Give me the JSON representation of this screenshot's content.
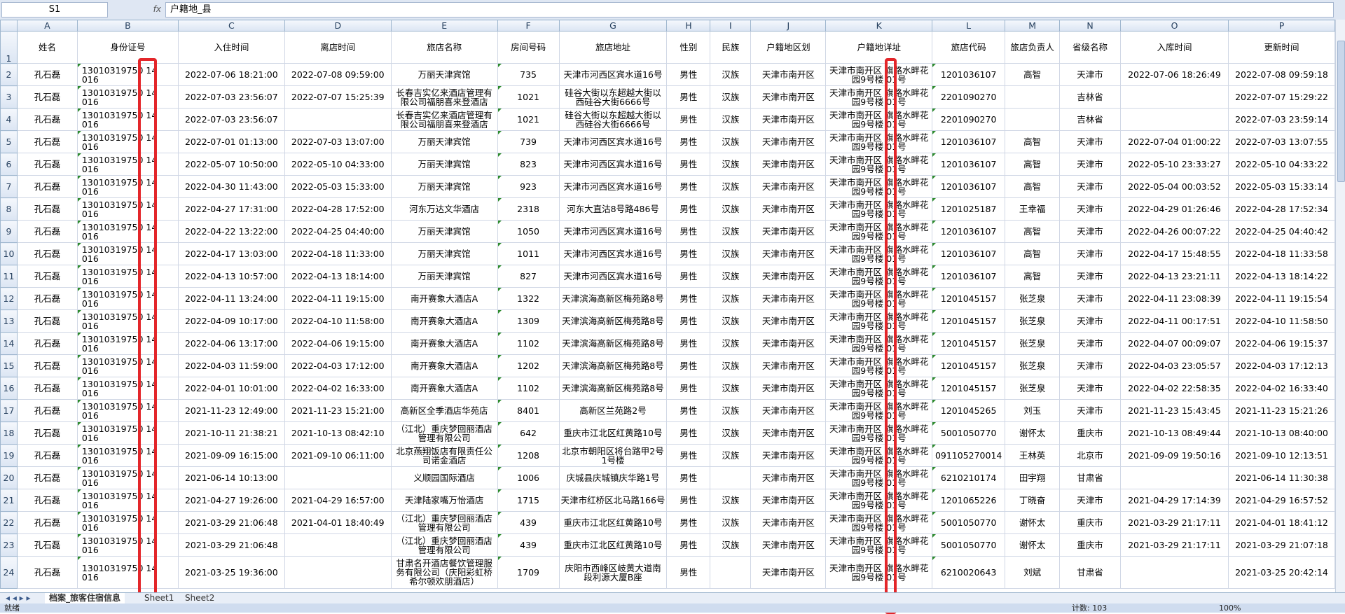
{
  "name_box": "S1",
  "formula": "户籍地_县",
  "columns": [
    "A",
    "B",
    "C",
    "D",
    "E",
    "F",
    "G",
    "H",
    "I",
    "J",
    "K",
    "L",
    "M",
    "N",
    "O",
    "P"
  ],
  "row_numbers": [
    1,
    2,
    3,
    4,
    5,
    6,
    7,
    8,
    9,
    10,
    11,
    12,
    13,
    14,
    15,
    16,
    17,
    18,
    19,
    20,
    21,
    22,
    23,
    24
  ],
  "table": {
    "header": [
      "姓名",
      "身份证号",
      "入住时间",
      "离店时间",
      "旅店名称",
      "房间号码",
      "旅店地址",
      "性别",
      "民族",
      "户籍地区划",
      "户籍地详址",
      "旅店代码",
      "旅店负责人",
      "省级名称",
      "入库时间",
      "更新时间"
    ],
    "rows": [
      [
        "孔石磊",
        "13010319750 14 016",
        "2022-07-06 18:21:00",
        "2022-07-08 09:59:00",
        "万丽天津宾馆",
        "735",
        "天津市河西区宾水道16号",
        "男性",
        "汉族",
        "天津市南开区",
        "天津市南开区 旗路水畔花园9号楼 01号",
        "1201036107",
        "高智",
        "天津市",
        "2022-07-06 18:26:49",
        "2022-07-08 09:59:18"
      ],
      [
        "孔石磊",
        "13010319750 14 016",
        "2022-07-03 23:56:07",
        "2022-07-07 15:25:39",
        "长春吉实亿来酒店管理有限公司福朋喜来登酒店",
        "1021",
        "硅谷大街以东超越大街以西硅谷大街6666号",
        "男性",
        "汉族",
        "天津市南开区",
        "天津市南开区 旗路水畔花园9号楼 01号",
        "2201090270",
        null,
        "吉林省",
        null,
        "2022-07-07 15:29:22"
      ],
      [
        "孔石磊",
        "13010319750 14 016",
        "2022-07-03 23:56:07",
        null,
        "长春吉实亿来酒店管理有限公司福朋喜来登酒店",
        "1021",
        "硅谷大街以东超越大街以西硅谷大街6666号",
        "男性",
        "汉族",
        "天津市南开区",
        "天津市南开区 旗路水畔花园9号楼 01号",
        "2201090270",
        null,
        "吉林省",
        null,
        "2022-07-03 23:59:14"
      ],
      [
        "孔石磊",
        "13010319750 14 016",
        "2022-07-01 01:13:00",
        "2022-07-03 13:07:00",
        "万丽天津宾馆",
        "739",
        "天津市河西区宾水道16号",
        "男性",
        "汉族",
        "天津市南开区",
        "天津市南开区 旗路水畔花园9号楼 01号",
        "1201036107",
        "高智",
        "天津市",
        "2022-07-04 01:00:22",
        "2022-07-03 13:07:55"
      ],
      [
        "孔石磊",
        "13010319750 14 016",
        "2022-05-07 10:50:00",
        "2022-05-10 04:33:00",
        "万丽天津宾馆",
        "823",
        "天津市河西区宾水道16号",
        "男性",
        "汉族",
        "天津市南开区",
        "天津市南开区 旗路水畔花园9号楼 01号",
        "1201036107",
        "高智",
        "天津市",
        "2022-05-10 23:33:27",
        "2022-05-10 04:33:22"
      ],
      [
        "孔石磊",
        "13010319750 14 016",
        "2022-04-30 11:43:00",
        "2022-05-03 15:33:00",
        "万丽天津宾馆",
        "923",
        "天津市河西区宾水道16号",
        "男性",
        "汉族",
        "天津市南开区",
        "天津市南开区 旗路水畔花园9号楼 01号",
        "1201036107",
        "高智",
        "天津市",
        "2022-05-04 00:03:52",
        "2022-05-03 15:33:14"
      ],
      [
        "孔石磊",
        "13010319750 14 016",
        "2022-04-27 17:31:00",
        "2022-04-28 17:52:00",
        "河东万达文华酒店",
        "2318",
        "河东大直沽8号路486号",
        "男性",
        "汉族",
        "天津市南开区",
        "天津市南开区 旗路水畔花园9号楼 01号",
        "1201025187",
        "王幸福",
        "天津市",
        "2022-04-29 01:26:46",
        "2022-04-28 17:52:34"
      ],
      [
        "孔石磊",
        "13010319750 14 016",
        "2022-04-22 13:22:00",
        "2022-04-25 04:40:00",
        "万丽天津宾馆",
        "1050",
        "天津市河西区宾水道16号",
        "男性",
        "汉族",
        "天津市南开区",
        "天津市南开区 旗路水畔花园9号楼 01号",
        "1201036107",
        "高智",
        "天津市",
        "2022-04-26 00:07:22",
        "2022-04-25 04:40:42"
      ],
      [
        "孔石磊",
        "13010319750 14 016",
        "2022-04-17 13:03:00",
        "2022-04-18 11:33:00",
        "万丽天津宾馆",
        "1011",
        "天津市河西区宾水道16号",
        "男性",
        "汉族",
        "天津市南开区",
        "天津市南开区 旗路水畔花园9号楼 01号",
        "1201036107",
        "高智",
        "天津市",
        "2022-04-17 15:48:55",
        "2022-04-18 11:33:58"
      ],
      [
        "孔石磊",
        "13010319750 14 016",
        "2022-04-13 10:57:00",
        "2022-04-13 18:14:00",
        "万丽天津宾馆",
        "827",
        "天津市河西区宾水道16号",
        "男性",
        "汉族",
        "天津市南开区",
        "天津市南开区 旗路水畔花园9号楼 01号",
        "1201036107",
        "高智",
        "天津市",
        "2022-04-13 23:21:11",
        "2022-04-13 18:14:22"
      ],
      [
        "孔石磊",
        "13010319750 14 016",
        "2022-04-11 13:24:00",
        "2022-04-11 19:15:00",
        "南开赛象大酒店A",
        "1322",
        "天津滨海高新区梅苑路8号",
        "男性",
        "汉族",
        "天津市南开区",
        "天津市南开区 旗路水畔花园9号楼 01号",
        "1201045157",
        "张芝泉",
        "天津市",
        "2022-04-11 23:08:39",
        "2022-04-11 19:15:54"
      ],
      [
        "孔石磊",
        "13010319750 14 016",
        "2022-04-09 10:17:00",
        "2022-04-10 11:58:00",
        "南开赛象大酒店A",
        "1309",
        "天津滨海高新区梅苑路8号",
        "男性",
        "汉族",
        "天津市南开区",
        "天津市南开区 旗路水畔花园9号楼 01号",
        "1201045157",
        "张芝泉",
        "天津市",
        "2022-04-11 00:17:51",
        "2022-04-10 11:58:50"
      ],
      [
        "孔石磊",
        "13010319750 14 016",
        "2022-04-06 13:17:00",
        "2022-04-06 19:15:00",
        "南开赛象大酒店A",
        "1102",
        "天津滨海高新区梅苑路8号",
        "男性",
        "汉族",
        "天津市南开区",
        "天津市南开区 旗路水畔花园9号楼 01号",
        "1201045157",
        "张芝泉",
        "天津市",
        "2022-04-07 00:09:07",
        "2022-04-06 19:15:37"
      ],
      [
        "孔石磊",
        "13010319750 14 016",
        "2022-04-03 11:59:00",
        "2022-04-03 17:12:00",
        "南开赛象大酒店A",
        "1202",
        "天津滨海高新区梅苑路8号",
        "男性",
        "汉族",
        "天津市南开区",
        "天津市南开区 旗路水畔花园9号楼 01号",
        "1201045157",
        "张芝泉",
        "天津市",
        "2022-04-03 23:05:57",
        "2022-04-03 17:12:13"
      ],
      [
        "孔石磊",
        "13010319750 14 016",
        "2022-04-01 10:01:00",
        "2022-04-02 16:33:00",
        "南开赛象大酒店A",
        "1102",
        "天津滨海高新区梅苑路8号",
        "男性",
        "汉族",
        "天津市南开区",
        "天津市南开区 旗路水畔花园9号楼 01号",
        "1201045157",
        "张芝泉",
        "天津市",
        "2022-04-02 22:58:35",
        "2022-04-02 16:33:40"
      ],
      [
        "孔石磊",
        "13010319750 14 016",
        "2021-11-23 12:49:00",
        "2021-11-23 15:21:00",
        "高新区全季酒店华苑店",
        "8401",
        "高新区兰苑路2号",
        "男性",
        "汉族",
        "天津市南开区",
        "天津市南开区 旗路水畔花园9号楼 01号",
        "1201045265",
        "刘玉",
        "天津市",
        "2021-11-23 15:43:45",
        "2021-11-23 15:21:26"
      ],
      [
        "孔石磊",
        "13010319750 14 016",
        "2021-10-11 21:38:21",
        "2021-10-13 08:42:10",
        "（江北）重庆梦回丽酒店管理有限公司",
        "642",
        "重庆市江北区红黄路10号",
        "男性",
        "汉族",
        "天津市南开区",
        "天津市南开区 旗路水畔花园9号楼 01号",
        "5001050770",
        "谢怀太",
        "重庆市",
        "2021-10-13 08:49:44",
        "2021-10-13 08:40:00"
      ],
      [
        "孔石磊",
        "13010319750 14 016",
        "2021-09-09 16:15:00",
        "2021-09-10 06:11:00",
        "北京燕翔饭店有限责任公司诺金酒店",
        "1208",
        "北京市朝阳区将台路甲2号1号楼",
        "男性",
        "汉族",
        "天津市南开区",
        "天津市南开区 旗路水畔花园9号楼 01号",
        "091105270014",
        "王林英",
        "北京市",
        "2021-09-09 19:50:16",
        "2021-09-10 12:13:51"
      ],
      [
        "孔石磊",
        "13010319750 14 016",
        "2021-06-14 10:13:00",
        null,
        "义顺园国际酒店",
        "1006",
        "庆城县庆城镇庆华路1号",
        "男性",
        null,
        "天津市南开区",
        "天津市南开区 旗路水畔花园9号楼 01号",
        "6210210174",
        "田宇翔",
        "甘肃省",
        null,
        "2021-06-14 11:30:38"
      ],
      [
        "孔石磊",
        "13010319750 14 016",
        "2021-04-27 19:26:00",
        "2021-04-29 16:57:00",
        "天津陆家嘴万怡酒店",
        "1715",
        "天津市红桥区北马路166号",
        "男性",
        "汉族",
        "天津市南开区",
        "天津市南开区 旗路水畔花园9号楼 01号",
        "1201065226",
        "丁晓奋",
        "天津市",
        "2021-04-29 17:14:39",
        "2021-04-29 16:57:52"
      ],
      [
        "孔石磊",
        "13010319750 14 016",
        "2021-03-29 21:06:48",
        "2021-04-01 18:40:49",
        "（江北）重庆梦回丽酒店管理有限公司",
        "439",
        "重庆市江北区红黄路10号",
        "男性",
        "汉族",
        "天津市南开区",
        "天津市南开区 旗路水畔花园9号楼 01号",
        "5001050770",
        "谢怀太",
        "重庆市",
        "2021-03-29 21:17:11",
        "2021-04-01 18:41:12"
      ],
      [
        "孔石磊",
        "13010319750 14 016",
        "2021-03-29 21:06:48",
        null,
        "（江北）重庆梦回丽酒店管理有限公司",
        "439",
        "重庆市江北区红黄路10号",
        "男性",
        "汉族",
        "天津市南开区",
        "天津市南开区 旗路水畔花园9号楼 01号",
        "5001050770",
        "谢怀太",
        "重庆市",
        "2021-03-29 21:17:11",
        "2021-03-29 21:07:18"
      ],
      [
        "孔石磊",
        "13010319750 14 016",
        "2021-03-25 19:36:00",
        null,
        "甘肃名开酒店餐饮管理服务有限公司（庆阳彩虹桥希尔顿欢朋酒店）",
        "1709",
        "庆阳市西峰区岐黄大道南段利源大厦B座",
        "男性",
        null,
        "天津市南开区",
        "天津市南开区 旗路水畔花园9号楼 01号",
        "6210020643",
        "刘斌",
        "甘肃省",
        null,
        "2021-03-25 20:42:14"
      ]
    ]
  },
  "sheet_tabs": [
    "档案_旅客住宿信息",
    "Sheet1",
    "Sheet2"
  ],
  "status": {
    "ready": "就绪",
    "count": "计数: 103",
    "zoom": "100%"
  }
}
